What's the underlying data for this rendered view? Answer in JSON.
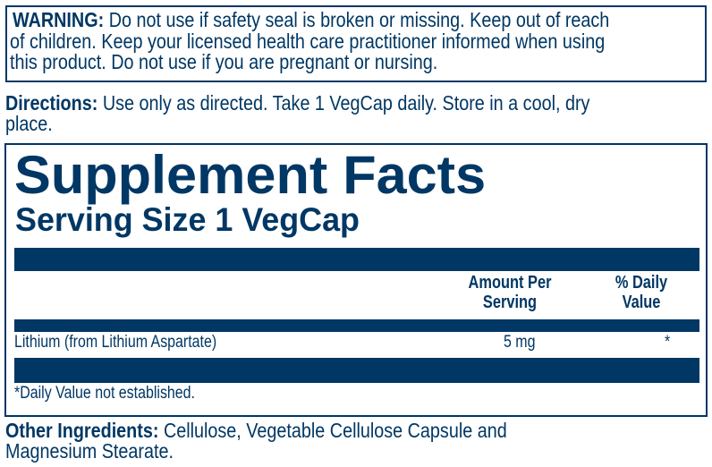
{
  "warning": {
    "label": "WARNING:",
    "lines": [
      " Do not use if safety seal is broken or missing. Keep out of reach",
      "of children. Keep your licensed health care practitioner informed when using",
      "this product. Do not use if you are pregnant or nursing."
    ]
  },
  "directions": {
    "label": "Directions:",
    "lines": [
      " Use only as directed. Take 1 VegCap daily. Store in a cool, dry",
      "place."
    ]
  },
  "facts": {
    "title": "Supplement Facts",
    "serving_size": "Serving Size 1 VegCap",
    "header_amount": [
      "Amount Per",
      "Serving"
    ],
    "header_dv": [
      "% Daily",
      "Value"
    ],
    "rows": [
      {
        "name": "Lithium (from Lithium Aspartate)",
        "amount": "5 mg",
        "dv": "*"
      }
    ],
    "footnote": "*Daily Value not established."
  },
  "other_ingredients": {
    "label": "Other Ingredients:",
    "lines": [
      " Cellulose, Vegetable Cellulose Capsule and",
      "Magnesium Stearate."
    ]
  },
  "colors": {
    "ink": "#003764",
    "background": "#ffffff"
  }
}
